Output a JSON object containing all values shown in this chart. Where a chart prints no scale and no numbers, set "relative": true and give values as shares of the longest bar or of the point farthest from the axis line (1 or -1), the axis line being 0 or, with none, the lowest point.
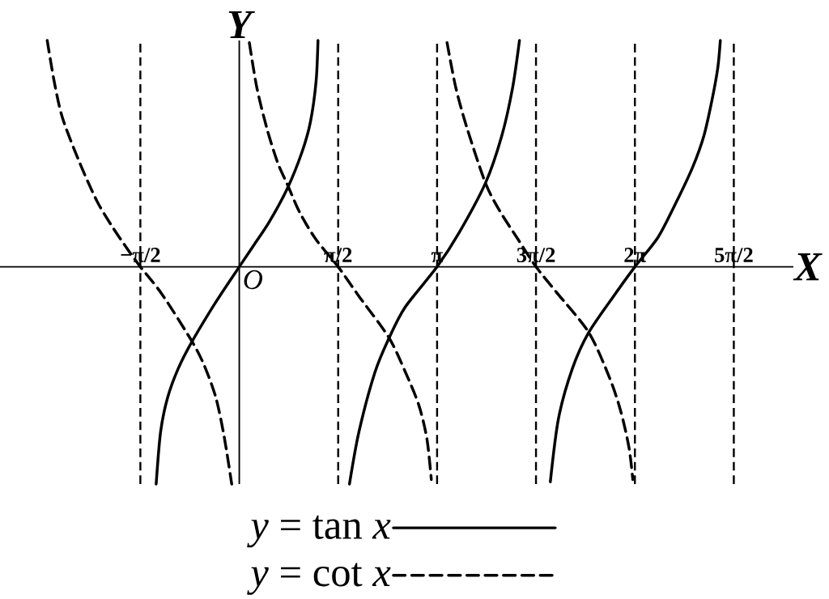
{
  "chart_data": {
    "type": "line",
    "relative": true,
    "xlabel": "X",
    "ylabel": "Y",
    "xlim": [
      -3.8,
      8.8
    ],
    "xticks": [
      {
        "value": -1.5708,
        "label": "−π/2"
      },
      {
        "value": 1.5708,
        "label": "π/2"
      },
      {
        "value": 3.1416,
        "label": "π"
      },
      {
        "value": 4.7124,
        "label": "3π/2"
      },
      {
        "value": 6.2832,
        "label": "2π"
      },
      {
        "value": 7.854,
        "label": "5π/2"
      }
    ],
    "annotations": [
      {
        "text": "O",
        "x": 0,
        "y": 0
      }
    ],
    "series": [
      {
        "name": "*y* = tan *x*",
        "color": "#000000",
        "line_style": "solid",
        "x": [
          -1.32,
          -1.25,
          -1.14,
          -0.97,
          -0.75,
          -0.37,
          0,
          0.23,
          0.48,
          0.77,
          1.0,
          1.13,
          1.22,
          1.25,
          1.5708,
          1.75,
          1.9,
          2.15,
          2.37,
          2.63,
          3.1416,
          3.49,
          3.91,
          4.17,
          4.34,
          4.45,
          4.7124,
          4.94,
          5.07,
          5.29,
          5.55,
          5.97,
          6.2832,
          6.65,
          6.93,
          7.2,
          7.38,
          7.51,
          7.6,
          7.64
        ],
        "values": [
          -0.96,
          -0.73,
          -0.58,
          -0.45,
          -0.33,
          -0.155,
          0,
          0.095,
          0.2,
          0.35,
          0.51,
          0.64,
          0.82,
          1,
          null,
          -0.96,
          -0.73,
          -0.47,
          -0.32,
          -0.18,
          0,
          0.15,
          0.37,
          0.58,
          0.79,
          1,
          null,
          -0.95,
          -0.67,
          -0.45,
          -0.29,
          -0.12,
          0,
          0.13,
          0.28,
          0.44,
          0.58,
          0.74,
          0.88,
          1
        ]
      },
      {
        "name": "*y* = cot *x*",
        "color": "#000000",
        "line_style": "dashed",
        "x": [
          -3.05,
          -2.94,
          -2.81,
          -2.55,
          -2.26,
          -2.0,
          -1.78,
          -1.5708,
          -1.23,
          -0.75,
          -0.55,
          -0.37,
          -0.24,
          -0.12,
          0,
          0.16,
          0.28,
          0.44,
          0.61,
          0.77,
          0.96,
          1.22,
          1.5708,
          1.9,
          2.37,
          2.63,
          2.85,
          2.98,
          3.05,
          3.1416,
          3.3,
          3.44,
          3.62,
          3.91,
          4.13,
          4.43,
          4.7124,
          5.03,
          5.55,
          5.88,
          6.06,
          6.19,
          6.25
        ],
        "values": [
          1,
          0.82,
          0.66,
          0.47,
          0.29,
          0.17,
          0.08,
          0,
          -0.12,
          -0.33,
          -0.44,
          -0.58,
          -0.75,
          -0.96,
          null,
          0.99,
          0.79,
          0.61,
          0.46,
          0.36,
          0.24,
          0.12,
          0,
          -0.13,
          -0.31,
          -0.46,
          -0.61,
          -0.76,
          -0.94,
          null,
          0.99,
          0.79,
          0.61,
          0.37,
          0.25,
          0.12,
          0,
          -0.11,
          -0.29,
          -0.49,
          -0.64,
          -0.8,
          -0.94
        ]
      }
    ],
    "ref_lines": [
      {
        "axis": "x",
        "value": -1.5708,
        "line_style": "dashed"
      },
      {
        "axis": "x",
        "value": 1.5708,
        "line_style": "dashed"
      },
      {
        "axis": "x",
        "value": 3.1416,
        "line_style": "dashed"
      },
      {
        "axis": "x",
        "value": 4.7124,
        "line_style": "dashed"
      },
      {
        "axis": "x",
        "value": 6.2832,
        "line_style": "dashed"
      },
      {
        "axis": "x",
        "value": 7.854,
        "line_style": "dashed"
      }
    ],
    "legend": "bottom",
    "marker": "none"
  }
}
